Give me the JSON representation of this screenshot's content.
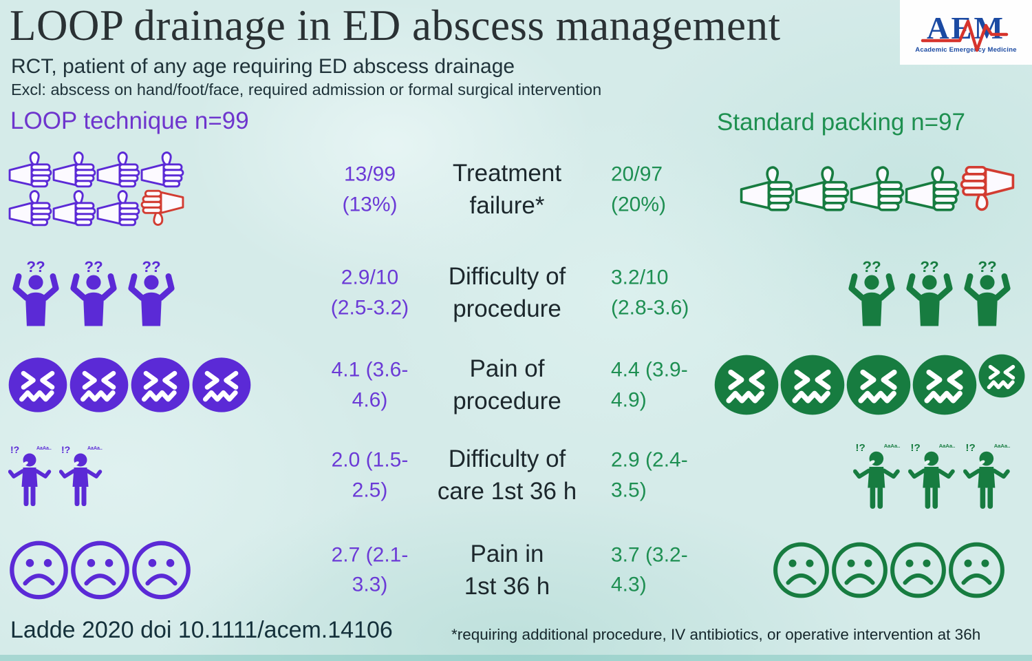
{
  "header": {
    "title": "LOOP drainage in ED abscess management",
    "subtitle": "RCT, patient of any age requiring ED abscess drainage",
    "exclusion": "Excl: abscess on hand/foot/face, required admission or formal surgical intervention"
  },
  "logo": {
    "acronym": "AEM",
    "name": "Academic Emergency Medicine"
  },
  "groups": {
    "loop": {
      "label": "LOOP technique n=99",
      "color": "#6e35cd"
    },
    "standard": {
      "label": "Standard packing n=97",
      "color": "#1e9050"
    }
  },
  "rows": [
    {
      "label": "Treatment\nfailure*",
      "loop": {
        "value": "13/99\n(13%)",
        "icons": [
          "thumbs-up",
          "thumbs-up",
          "thumbs-up",
          "thumbs-up",
          "thumbs-up",
          "thumbs-up",
          "thumbs-up",
          "thumbs-down"
        ]
      },
      "standard": {
        "value": "20/97\n(20%)",
        "icons": [
          "thumbs-up",
          "thumbs-up",
          "thumbs-up",
          "thumbs-up",
          "thumbs-down"
        ]
      }
    },
    {
      "label": "Difficulty of\nprocedure",
      "loop": {
        "value": "2.9/10\n(2.5-3.2)",
        "icons": [
          "confused-person",
          "confused-person",
          "confused-person"
        ]
      },
      "standard": {
        "value": "3.2/10\n(2.8-3.6)",
        "icons": [
          "confused-person",
          "confused-person",
          "confused-person"
        ]
      }
    },
    {
      "label": "Pain of\nprocedure",
      "loop": {
        "value": "4.1 (3.6-\n4.6)",
        "icons": [
          "grimace-face",
          "grimace-face",
          "grimace-face",
          "grimace-face"
        ]
      },
      "standard": {
        "value": "4.4 (3.9-\n4.9)",
        "icons": [
          "grimace-face",
          "grimace-face",
          "grimace-face",
          "grimace-face",
          "grimace-face-small"
        ]
      }
    },
    {
      "label": "Difficulty of\ncare 1st 36 h",
      "loop": {
        "value": "2.0 (1.5-\n2.5)",
        "icons": [
          "shrug-person",
          "shrug-person"
        ]
      },
      "standard": {
        "value": "2.9 (2.4-\n3.5)",
        "icons": [
          "shrug-person",
          "shrug-person",
          "shrug-person"
        ]
      }
    },
    {
      "label": "Pain in\n1st 36 h",
      "loop": {
        "value": "2.7 (2.1-\n3.3)",
        "icons": [
          "frown-face",
          "frown-face",
          "frown-face"
        ]
      },
      "standard": {
        "value": "3.7 (3.2-\n4.3)",
        "icons": [
          "frown-face",
          "frown-face",
          "frown-face",
          "frown-face"
        ]
      }
    }
  ],
  "footer": {
    "citation": "Ladde 2020 doi 10.1111/acem.14106",
    "footnote": "*requiring additional procedure, IV antibiotics, or operative intervention at 36h"
  },
  "colors": {
    "purple_text": "#6b3ad6",
    "purple_icon": "#5b2ad6",
    "green_text": "#1e8f52",
    "green_icon": "#177c40",
    "red_icon": "#d23c31",
    "logo_blue": "#1b4aa2",
    "logo_red": "#d6342c",
    "background": "#d5ebe9"
  },
  "chart_data": {
    "type": "table",
    "title": "LOOP drainage in ED abscess management",
    "subtitle": "RCT, patient of any age requiring ED abscess drainage",
    "categories": [
      "Treatment failure*",
      "Difficulty of procedure",
      "Pain of procedure",
      "Difficulty of care 1st 36 h",
      "Pain in 1st 36 h"
    ],
    "series": [
      {
        "name": "LOOP technique n=99",
        "values": [
          "13/99 (13%)",
          "2.9/10 (2.5-3.2)",
          "4.1 (3.6-4.6)",
          "2.0 (1.5-2.5)",
          "2.7 (2.1-3.3)"
        ]
      },
      {
        "name": "Standard packing n=97",
        "values": [
          "20/97 (20%)",
          "3.2/10 (2.8-3.6)",
          "4.4 (3.9-4.9)",
          "2.9 (2.4-3.5)",
          "3.7 (3.2-4.3)"
        ]
      }
    ],
    "legend_position": "column headers left (purple) and right (green)",
    "notes": "Pictograph infographic: thumbs up/down for treatment failure, confused figures for difficulty of procedure, grimacing faces for pain of procedure, shrugging figures for difficulty of care, frowning faces for pain in first 36 h"
  }
}
